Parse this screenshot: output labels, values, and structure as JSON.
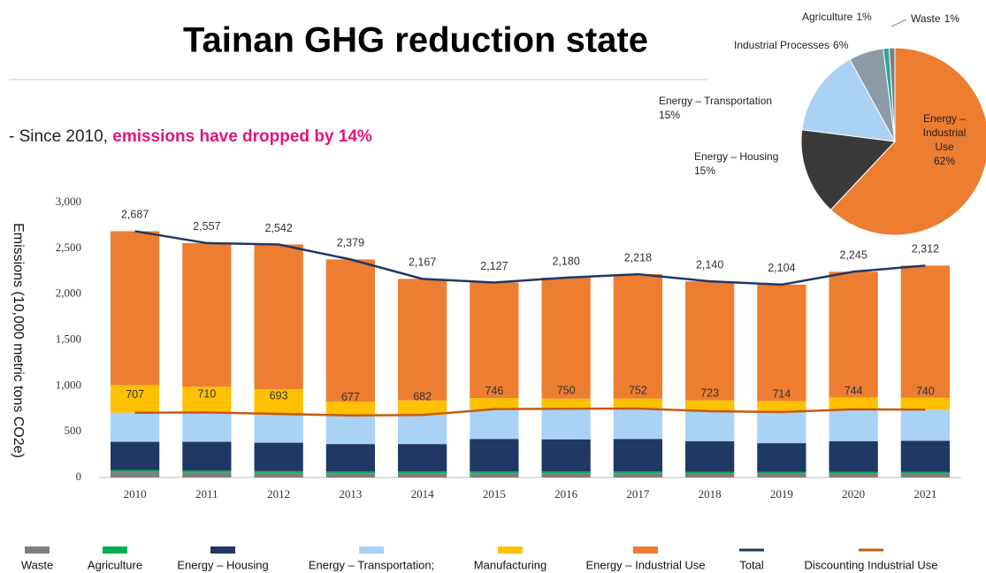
{
  "title": "Tainan GHG reduction state",
  "subtitle": {
    "lead": "- Since 2010, ",
    "highlight": "emissions have dropped by 14%"
  },
  "chart_data": [
    {
      "type": "bar",
      "stacked": true,
      "y_label": "Emissions (10,000 metric tons CO2e)",
      "categories": [
        "2010",
        "2011",
        "2012",
        "2013",
        "2014",
        "2015",
        "2016",
        "2017",
        "2018",
        "2019",
        "2020",
        "2021"
      ],
      "ylim": [
        0,
        3000
      ],
      "yticks": [
        0,
        500,
        {
          "value": 1000,
          "label": "1,000"
        },
        {
          "value": 1500,
          "label": "1,500"
        },
        {
          "value": 2000,
          "label": "2,000"
        },
        {
          "value": 2500,
          "label": "2,500"
        },
        {
          "value": 3000,
          "label": "3,000"
        }
      ],
      "series": [
        {
          "name": "Waste",
          "type": "bar",
          "color": "#7f7f7f",
          "values": [
            60,
            55,
            50,
            45,
            45,
            45,
            45,
            45,
            40,
            40,
            40,
            40
          ]
        },
        {
          "name": "Agriculture",
          "type": "bar",
          "color": "#00b050",
          "values": [
            20,
            20,
            20,
            20,
            20,
            20,
            20,
            20,
            20,
            20,
            20,
            20
          ]
        },
        {
          "name": "Energy – Housing",
          "type": "bar",
          "color": "#203864",
          "values": [
            310,
            315,
            310,
            300,
            300,
            355,
            350,
            355,
            335,
            315,
            335,
            340
          ]
        },
        {
          "name": "Energy – Transportation;",
          "type": "bar",
          "color": "#a9d2f5",
          "values": [
            317,
            320,
            313,
            312,
            317,
            326,
            335,
            332,
            328,
            339,
            349,
            340
          ]
        },
        {
          "name": "Manufacturing",
          "type": "bar",
          "color": "#ffc000",
          "values": [
            300,
            280,
            270,
            150,
            160,
            120,
            110,
            110,
            120,
            120,
            130,
            130
          ]
        },
        {
          "name": "Energy – Industrial Use",
          "type": "bar",
          "color": "#ed7d31",
          "values": [
            1680,
            1567,
            1579,
            1552,
            1325,
            1261,
            1320,
            1356,
            1297,
            1270,
            1371,
            1442
          ]
        },
        {
          "name": "Total",
          "type": "line",
          "color": "#203864",
          "values": [
            2687,
            2557,
            2542,
            2379,
            2167,
            2127,
            2180,
            2218,
            2140,
            2104,
            2245,
            2312
          ],
          "value_labels": [
            "2,687",
            "2,557",
            "2,542",
            "2,379",
            "2,167",
            "2,127",
            "2,180",
            "2,218",
            "2,140",
            "2,104",
            "2,245",
            "2,312"
          ]
        },
        {
          "name": "Discounting Industrial Use",
          "type": "line",
          "color": "#c55a11",
          "values": [
            707,
            710,
            693,
            677,
            682,
            746,
            750,
            752,
            723,
            714,
            744,
            740
          ]
        }
      ]
    },
    {
      "type": "pie",
      "categories": [
        "Energy – Industrial Use",
        "Energy – Housing",
        "Energy – Transportation",
        "Industrial Processes",
        "Agriculture",
        "Waste"
      ],
      "values": [
        62,
        15,
        15,
        6,
        1,
        1
      ],
      "value_labels": [
        "62%",
        "15%",
        "15%",
        "6%",
        "1%",
        "1%"
      ],
      "colors": [
        "#ed7d31",
        "#3a3a3a",
        "#a9d2f5",
        "#8c9aa5",
        "#2ea89a",
        "#7f7f7f"
      ]
    }
  ]
}
